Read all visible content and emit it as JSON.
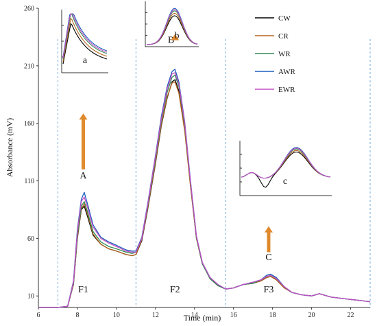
{
  "chart_data": {
    "type": "line",
    "xlabel": "Time (min)",
    "ylabel": "Absorbance (mV)",
    "xlim": [
      6,
      23
    ],
    "ylim": [
      0,
      260
    ],
    "x_ticks": [
      6,
      8,
      10,
      12,
      14,
      16,
      18,
      20,
      22
    ],
    "y_ticks": [
      10,
      60,
      110,
      160,
      210,
      260
    ],
    "grid": false,
    "legend_position": "top-right",
    "divider_lines_x": [
      7,
      11,
      15.6,
      23
    ],
    "series": [
      {
        "name": "CW",
        "color": "#000000",
        "x": [
          6,
          7,
          7.5,
          7.8,
          8.0,
          8.2,
          8.35,
          8.5,
          8.8,
          9.2,
          9.6,
          10.0,
          10.5,
          10.8,
          11.0,
          11.3,
          11.6,
          12.0,
          12.3,
          12.6,
          12.85,
          13.0,
          13.2,
          13.5,
          13.8,
          14.1,
          14.4,
          14.8,
          15.2,
          15.6,
          16.0,
          16.5,
          17.0,
          17.4,
          17.7,
          17.9,
          18.2,
          18.6,
          19.0,
          19.5,
          20.0,
          20.4,
          20.6,
          21.0,
          21.5,
          22.0,
          22.5,
          23.0
        ],
        "y": [
          0,
          0,
          1,
          20,
          60,
          85,
          88,
          80,
          63,
          55,
          51,
          49,
          46,
          45,
          46,
          58,
          85,
          125,
          158,
          182,
          196,
          198,
          188,
          155,
          105,
          60,
          38,
          25,
          19,
          16,
          17,
          20,
          21,
          23,
          26,
          27,
          24,
          17,
          13,
          11,
          10,
          12,
          11,
          9,
          8,
          7,
          6,
          5
        ]
      },
      {
        "name": "CR",
        "color": "#b5651d",
        "x": [
          6,
          7,
          7.5,
          7.8,
          8.0,
          8.2,
          8.35,
          8.5,
          8.8,
          9.2,
          9.6,
          10.0,
          10.5,
          10.8,
          11.0,
          11.3,
          11.6,
          12.0,
          12.3,
          12.6,
          12.85,
          13.0,
          13.2,
          13.5,
          13.8,
          14.1,
          14.4,
          14.8,
          15.2,
          15.6,
          16.0,
          16.5,
          17.0,
          17.4,
          17.7,
          17.9,
          18.2,
          18.6,
          19.0,
          19.5,
          20.0,
          20.4,
          20.6,
          21.0,
          21.5,
          22.0,
          22.5,
          23.0
        ],
        "y": [
          0,
          0,
          1,
          20,
          61,
          86,
          90,
          82,
          64,
          55,
          51,
          49,
          46,
          45,
          46,
          59,
          86,
          126,
          159,
          183,
          195,
          196,
          186,
          153,
          104,
          60,
          38,
          25,
          19,
          16,
          17,
          20,
          21,
          23,
          26,
          27,
          24,
          17,
          13,
          11,
          10,
          12,
          11,
          9,
          8,
          7,
          6,
          5
        ]
      },
      {
        "name": "WR",
        "color": "#2e8b57",
        "x": [
          6,
          7,
          7.5,
          7.8,
          8.0,
          8.2,
          8.35,
          8.5,
          8.8,
          9.2,
          9.6,
          10.0,
          10.5,
          10.8,
          11.0,
          11.3,
          11.6,
          12.0,
          12.3,
          12.6,
          12.85,
          13.0,
          13.2,
          13.5,
          13.8,
          14.1,
          14.4,
          14.8,
          15.2,
          15.6,
          16.0,
          16.5,
          17.0,
          17.4,
          17.7,
          17.9,
          18.2,
          18.6,
          19.0,
          19.5,
          20.0,
          20.4,
          20.6,
          21.0,
          21.5,
          22.0,
          22.5,
          23.0
        ],
        "y": [
          0,
          0,
          1,
          21,
          63,
          88,
          92,
          84,
          66,
          57,
          53,
          51,
          48,
          47,
          48,
          60,
          88,
          129,
          162,
          187,
          200,
          202,
          192,
          158,
          107,
          61,
          38,
          25,
          19,
          16,
          17,
          20,
          21,
          24,
          27,
          28,
          25,
          18,
          13,
          11,
          10,
          12,
          11,
          9,
          8,
          7,
          6,
          5
        ]
      },
      {
        "name": "AWR",
        "color": "#1f5fbf",
        "x": [
          6,
          7,
          7.5,
          7.8,
          8.0,
          8.2,
          8.35,
          8.5,
          8.8,
          9.2,
          9.6,
          10.0,
          10.5,
          10.8,
          11.0,
          11.3,
          11.6,
          12.0,
          12.3,
          12.6,
          12.85,
          13.0,
          13.2,
          13.5,
          13.8,
          14.1,
          14.4,
          14.8,
          15.2,
          15.6,
          16.0,
          16.5,
          17.0,
          17.4,
          17.7,
          17.9,
          18.2,
          18.6,
          19.0,
          19.5,
          20.0,
          20.4,
          20.6,
          21.0,
          21.5,
          22.0,
          22.5,
          23.0
        ],
        "y": [
          0,
          0,
          1,
          23,
          68,
          94,
          100,
          91,
          72,
          61,
          57,
          54,
          50,
          49,
          49,
          61,
          90,
          132,
          166,
          192,
          205,
          207,
          196,
          161,
          109,
          62,
          39,
          26,
          20,
          16,
          17,
          20,
          22,
          24,
          28,
          29,
          26,
          18,
          13,
          11,
          10,
          12,
          11,
          9,
          8,
          7,
          6,
          5
        ]
      },
      {
        "name": "EWR",
        "color": "#c44fc4",
        "x": [
          6,
          7,
          7.5,
          7.8,
          8.0,
          8.2,
          8.35,
          8.5,
          8.8,
          9.2,
          9.6,
          10.0,
          10.5,
          10.8,
          11.0,
          11.3,
          11.6,
          12.0,
          12.3,
          12.6,
          12.85,
          13.0,
          13.2,
          13.5,
          13.8,
          14.1,
          14.4,
          14.8,
          15.2,
          15.6,
          16.0,
          16.5,
          17.0,
          17.4,
          17.7,
          17.9,
          18.2,
          18.6,
          19.0,
          19.5,
          20.0,
          20.4,
          20.6,
          21.0,
          21.5,
          22.0,
          22.5,
          23.0
        ],
        "y": [
          0,
          0,
          1,
          22,
          66,
          92,
          96,
          88,
          70,
          60,
          56,
          53,
          49,
          48,
          48,
          60,
          89,
          131,
          164,
          190,
          203,
          204,
          194,
          160,
          108,
          62,
          39,
          26,
          20,
          16,
          17,
          20,
          22,
          24,
          27,
          28,
          25,
          18,
          13,
          11,
          10,
          12,
          11,
          9,
          8,
          7,
          6,
          5
        ]
      }
    ],
    "annotations": [
      {
        "text": "F1",
        "x": 8.3,
        "y": 13
      },
      {
        "text": "F2",
        "x": 13.0,
        "y": 13
      },
      {
        "text": "F3",
        "x": 17.8,
        "y": 13
      },
      {
        "text": "A",
        "x": 8.3,
        "y": 112
      },
      {
        "text": "B",
        "x": 12.8,
        "y": 230
      },
      {
        "text": "C",
        "x": 17.8,
        "y": 41
      }
    ],
    "arrows": [
      {
        "x": 8.3,
        "y_from": 120,
        "y_to": 168
      },
      {
        "x": 13.0,
        "y_from": 233,
        "y_to": 237
      },
      {
        "x": 17.8,
        "y_from": 48,
        "y_to": 70
      }
    ],
    "insets": [
      {
        "label": "a"
      },
      {
        "label": "b"
      },
      {
        "label": "c"
      }
    ]
  }
}
